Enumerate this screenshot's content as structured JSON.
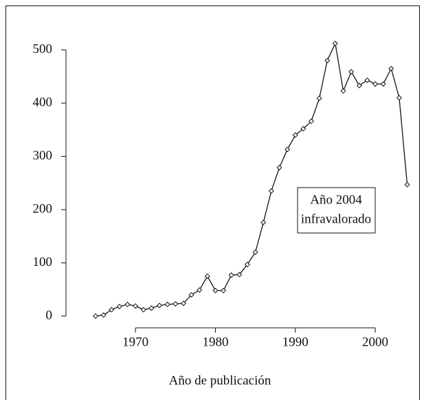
{
  "chart_data": {
    "type": "line",
    "x_label": "Año de publicación",
    "annotation": [
      "Año 2004",
      "infravalorado"
    ],
    "x": [
      1965,
      1966,
      1967,
      1968,
      1969,
      1970,
      1971,
      1972,
      1973,
      1974,
      1975,
      1976,
      1977,
      1978,
      1979,
      1980,
      1981,
      1982,
      1983,
      1984,
      1985,
      1986,
      1987,
      1988,
      1989,
      1990,
      1991,
      1992,
      1993,
      1994,
      1995,
      1996,
      1997,
      1998,
      1999,
      2000,
      2001,
      2002,
      2003,
      2004
    ],
    "values": [
      0,
      2,
      12,
      18,
      22,
      19,
      12,
      15,
      20,
      22,
      23,
      24,
      40,
      49,
      75,
      48,
      48,
      77,
      78,
      97,
      120,
      176,
      235,
      279,
      313,
      340,
      352,
      366,
      409,
      480,
      512,
      423,
      459,
      433,
      443,
      436,
      436,
      465,
      410,
      247
    ],
    "color": "#111111",
    "xlim": [
      1961.3,
      2005.5
    ],
    "xticks": [
      1970,
      1980,
      1990,
      2000
    ],
    "ylim": [
      -22,
      555
    ],
    "yticks": [
      0,
      100,
      200,
      300,
      400,
      500
    ]
  }
}
